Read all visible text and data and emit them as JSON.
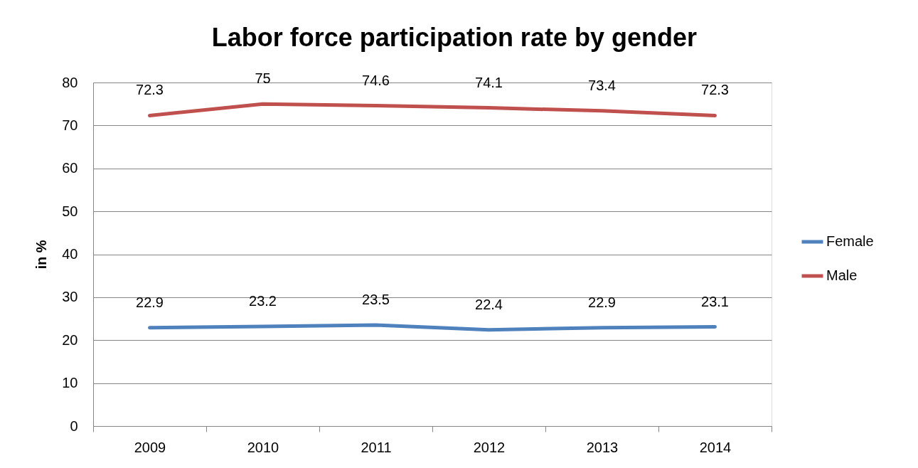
{
  "chart_data": {
    "type": "line",
    "title": "Labor force participation rate by gender",
    "ylabel": "in %",
    "categories": [
      "2009",
      "2010",
      "2011",
      "2012",
      "2013",
      "2014"
    ],
    "series": [
      {
        "name": "Female",
        "color": "#4f81bd",
        "values": [
          22.9,
          23.2,
          23.5,
          22.4,
          22.9,
          23.1
        ]
      },
      {
        "name": "Male",
        "color": "#c0504d",
        "values": [
          72.3,
          75,
          74.6,
          74.1,
          73.4,
          72.3
        ]
      }
    ],
    "ylim": [
      0,
      80
    ],
    "yticks": [
      0,
      10,
      20,
      30,
      40,
      50,
      60,
      70,
      80
    ],
    "grid": "y",
    "legend": "right",
    "data_labels": true,
    "marker": "none",
    "line_style": "solid"
  }
}
